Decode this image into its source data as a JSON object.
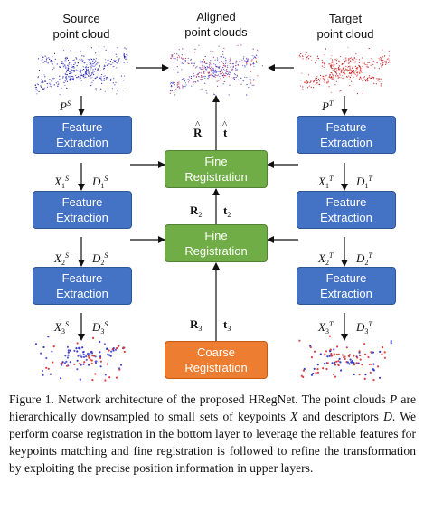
{
  "headers": {
    "source_line1": "Source",
    "source_line2": "point cloud",
    "aligned_line1": "Aligned",
    "aligned_line2": "point clouds",
    "target_line1": "Target",
    "target_line2": "point cloud"
  },
  "boxes": {
    "feature_line1": "Feature",
    "feature_line2": "Extraction",
    "fine_line1": "Fine",
    "fine_line2": "Registration",
    "coarse_line1": "Coarse",
    "coarse_line2": "Registration"
  },
  "labels": {
    "P": "P",
    "X": "X",
    "D": "D",
    "S": "S",
    "T": "T",
    "R": "R",
    "t": "t",
    "i1": "1",
    "i2": "2",
    "i3": "3",
    "hat": "^"
  },
  "colors": {
    "feature_box": "#4472c4",
    "fine_box": "#70ad47",
    "coarse_box": "#ed7d31",
    "source_cloud": "#3a3ac8",
    "target_cloud": "#e23a3a"
  },
  "caption": {
    "figure_label": "Figure 1.",
    "text_1": " Network architecture of the proposed HRegNet. The point clouds ",
    "P": "P",
    "text_2": " are hierarchically downsampled to small sets of keypoints ",
    "X": "X",
    "text_3": " and descriptors ",
    "D": "D",
    "text_4": ". We perform coarse registration in the bottom layer to leverage the reliable features for keypoints matching and fine registration is followed to refine the transformation by exploiting the precise position information in upper layers."
  }
}
